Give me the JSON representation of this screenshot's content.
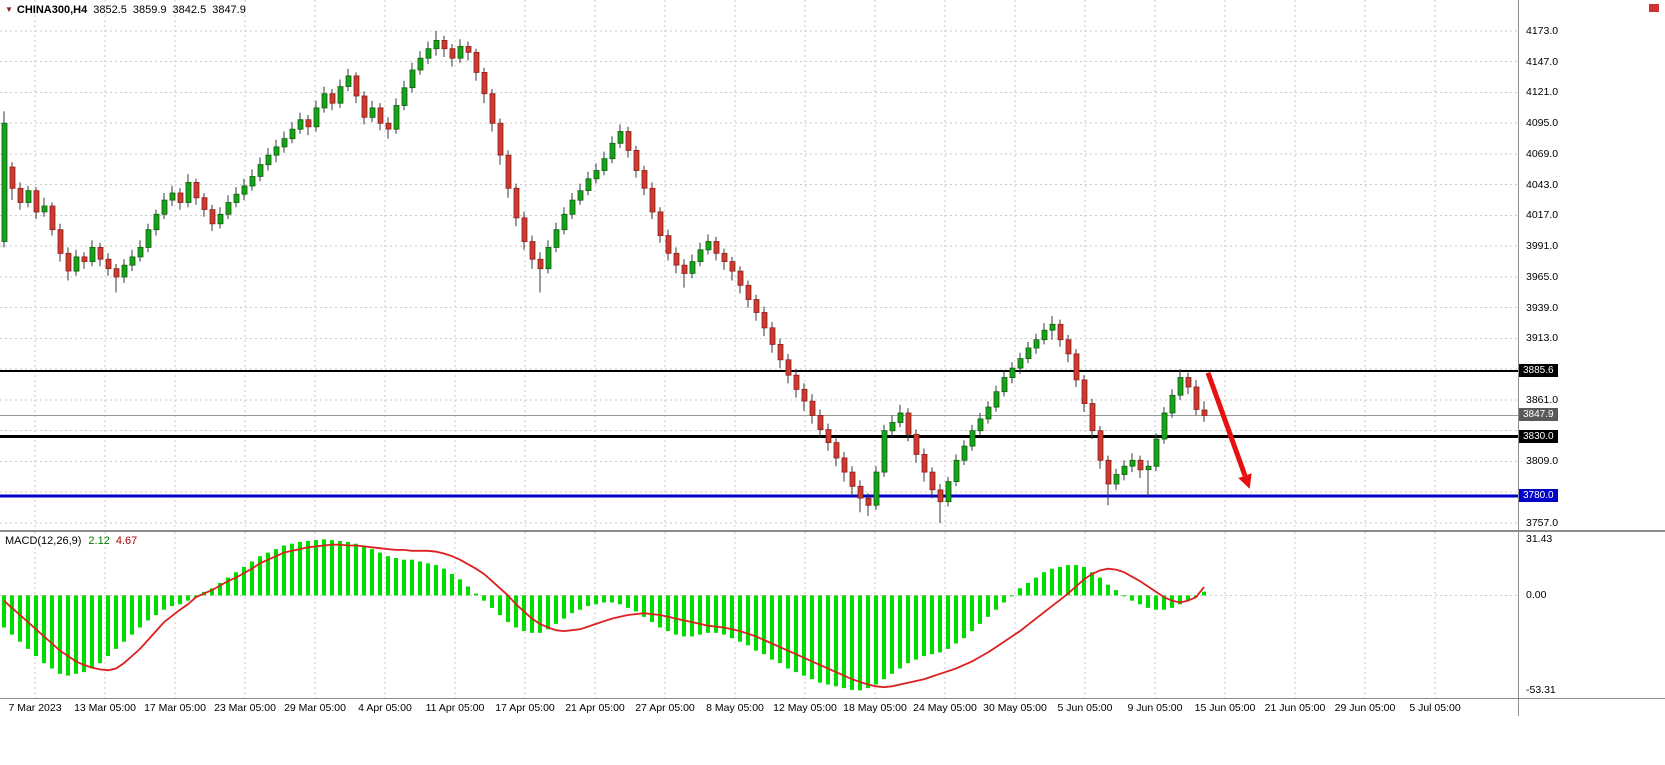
{
  "header": {
    "symbol": "CHINA300,H4",
    "open": "3852.5",
    "high": "3859.9",
    "low": "3842.5",
    "close": "3847.9"
  },
  "icons": {
    "symbol_dropdown": "▼"
  },
  "macd": {
    "label": "MACD(12,26,9)",
    "value_main": "2.12",
    "value_signal": "4.67"
  },
  "price_axis": {
    "badges": [
      {
        "label": "3885.6",
        "value": 3885.6,
        "bg": "#000000"
      },
      {
        "label": "3847.9",
        "value": 3847.9,
        "bg": "#5a5a5a"
      },
      {
        "label": "3830.0",
        "value": 3830.0,
        "bg": "#000000"
      },
      {
        "label": "3780.0",
        "value": 3780.0,
        "bg": "#0000c8"
      }
    ]
  },
  "colors": {
    "up": "#17a317",
    "up_border": "#0b5d0b",
    "down": "#cc3b30",
    "down_border": "#8d1f17",
    "wick": "#3a3a3a",
    "hist": "#00db00",
    "signal": "#dd1f1f",
    "grid": "#c9c9c9",
    "arrow": "#e81010",
    "axis_text": "#000000"
  },
  "chart_data": [
    {
      "type": "candlestick",
      "title": "CHINA300,H4",
      "timeframe": "H4",
      "ylim": [
        3751,
        4199
      ],
      "grid": true,
      "y_ticks": [
        4173,
        4147,
        4121,
        4095,
        4069,
        4043,
        4017,
        3991,
        3965,
        3939,
        3913,
        3887,
        3861,
        3835,
        3809,
        3783,
        3757
      ],
      "hidden_ticks": [
        3887,
        3835,
        3783
      ],
      "x_labels": [
        "7 Mar 2023",
        "13 Mar 05:00",
        "17 Mar 05:00",
        "23 Mar 05:00",
        "29 Mar 05:00",
        "4 Apr 05:00",
        "11 Apr 05:00",
        "17 Apr 05:00",
        "21 Apr 05:00",
        "27 Apr 05:00",
        "8 May 05:00",
        "12 May 05:00",
        "18 May 05:00",
        "24 May 05:00",
        "30 May 05:00",
        "5 Jun 05:00",
        "9 Jun 05:00",
        "15 Jun 05:00",
        "21 Jun 05:00",
        "29 Jun 05:00",
        "5 Jul 05:00"
      ],
      "hlines": [
        {
          "value": 3885.6,
          "color": "#000000",
          "width": 2,
          "role": "resistance"
        },
        {
          "value": 3830.0,
          "color": "#000000",
          "width": 3,
          "role": "support"
        },
        {
          "value": 3780.0,
          "color": "#0000c8",
          "width": 3,
          "role": "support"
        },
        {
          "value": 3847.9,
          "color": "#999999",
          "width": 1,
          "role": "current-price"
        }
      ],
      "annotations": [
        {
          "shape": "arrow",
          "color": "#e81010",
          "x_from": 1208,
          "price_from": 3884,
          "x_to": 1245,
          "price_to": 3797,
          "meaning": "projected decline"
        }
      ],
      "ohlc_current": {
        "open": 3852.5,
        "high": 3859.9,
        "low": 3842.5,
        "close": 3847.9
      },
      "candles": [
        [
          3995,
          4105,
          3990,
          4095
        ],
        [
          4058,
          4062,
          4030,
          4040
        ],
        [
          4040,
          4045,
          4022,
          4028
        ],
        [
          4028,
          4042,
          4024,
          4038
        ],
        [
          4038,
          4041,
          4014,
          4020
        ],
        [
          4020,
          4032,
          4016,
          4025
        ],
        [
          4025,
          4028,
          4000,
          4005
        ],
        [
          4005,
          4010,
          3978,
          3985
        ],
        [
          3985,
          3990,
          3962,
          3970
        ],
        [
          3970,
          3988,
          3966,
          3982
        ],
        [
          3982,
          3986,
          3972,
          3978
        ],
        [
          3978,
          3996,
          3974,
          3990
        ],
        [
          3990,
          3994,
          3974,
          3980
        ],
        [
          3980,
          3985,
          3966,
          3972
        ],
        [
          3972,
          3976,
          3952,
          3965
        ],
        [
          3965,
          3980,
          3960,
          3975
        ],
        [
          3975,
          3988,
          3970,
          3982
        ],
        [
          3982,
          3996,
          3978,
          3990
        ],
        [
          3990,
          4010,
          3986,
          4005
        ],
        [
          4005,
          4022,
          4000,
          4018
        ],
        [
          4018,
          4036,
          4014,
          4030
        ],
        [
          4030,
          4042,
          4025,
          4036
        ],
        [
          4036,
          4040,
          4022,
          4028
        ],
        [
          4028,
          4052,
          4024,
          4045
        ],
        [
          4045,
          4048,
          4026,
          4032
        ],
        [
          4032,
          4036,
          4016,
          4022
        ],
        [
          4022,
          4026,
          4004,
          4010
        ],
        [
          4010,
          4024,
          4006,
          4018
        ],
        [
          4018,
          4034,
          4014,
          4028
        ],
        [
          4028,
          4041,
          4024,
          4035
        ],
        [
          4035,
          4048,
          4030,
          4042
        ],
        [
          4042,
          4056,
          4038,
          4050
        ],
        [
          4050,
          4066,
          4046,
          4060
        ],
        [
          4060,
          4074,
          4055,
          4068
        ],
        [
          4068,
          4081,
          4062,
          4075
        ],
        [
          4075,
          4088,
          4070,
          4082
        ],
        [
          4082,
          4096,
          4078,
          4090
        ],
        [
          4090,
          4104,
          4086,
          4098
        ],
        [
          4098,
          4102,
          4085,
          4092
        ],
        [
          4092,
          4114,
          4088,
          4108
        ],
        [
          4108,
          4126,
          4104,
          4120
        ],
        [
          4120,
          4124,
          4106,
          4112
        ],
        [
          4112,
          4132,
          4108,
          4126
        ],
        [
          4126,
          4141,
          4122,
          4135
        ],
        [
          4135,
          4138,
          4112,
          4118
        ],
        [
          4118,
          4122,
          4094,
          4100
        ],
        [
          4100,
          4114,
          4096,
          4108
        ],
        [
          4108,
          4112,
          4089,
          4095
        ],
        [
          4095,
          4100,
          4082,
          4090
        ],
        [
          4090,
          4116,
          4086,
          4110
        ],
        [
          4110,
          4131,
          4106,
          4125
        ],
        [
          4125,
          4146,
          4121,
          4140
        ],
        [
          4140,
          4156,
          4136,
          4150
        ],
        [
          4150,
          4164,
          4145,
          4158
        ],
        [
          4158,
          4173,
          4152,
          4165
        ],
        [
          4165,
          4169,
          4151,
          4158
        ],
        [
          4158,
          4162,
          4143,
          4150
        ],
        [
          4150,
          4166,
          4146,
          4160
        ],
        [
          4160,
          4164,
          4148,
          4155
        ],
        [
          4155,
          4158,
          4131,
          4138
        ],
        [
          4138,
          4142,
          4112,
          4120
        ],
        [
          4120,
          4124,
          4088,
          4095
        ],
        [
          4095,
          4099,
          4060,
          4068
        ],
        [
          4068,
          4072,
          4032,
          4040
        ],
        [
          4040,
          4044,
          4008,
          4015
        ],
        [
          4015,
          4020,
          3988,
          3995
        ],
        [
          3995,
          4000,
          3972,
          3980
        ],
        [
          3980,
          3986,
          3952,
          3972
        ],
        [
          3972,
          3996,
          3968,
          3990
        ],
        [
          3990,
          4011,
          3986,
          4005
        ],
        [
          4005,
          4024,
          4001,
          4018
        ],
        [
          4018,
          4036,
          4014,
          4030
        ],
        [
          4030,
          4044,
          4026,
          4038
        ],
        [
          4038,
          4054,
          4034,
          4048
        ],
        [
          4048,
          4061,
          4044,
          4055
        ],
        [
          4055,
          4071,
          4051,
          4065
        ],
        [
          4065,
          4084,
          4061,
          4078
        ],
        [
          4078,
          4094,
          4074,
          4088
        ],
        [
          4088,
          4092,
          4066,
          4072
        ],
        [
          4072,
          4076,
          4049,
          4055
        ],
        [
          4055,
          4059,
          4034,
          4040
        ],
        [
          4040,
          4045,
          4014,
          4020
        ],
        [
          4020,
          4024,
          3994,
          4000
        ],
        [
          4000,
          4005,
          3979,
          3985
        ],
        [
          3985,
          3990,
          3968,
          3975
        ],
        [
          3975,
          3980,
          3956,
          3968
        ],
        [
          3968,
          3984,
          3964,
          3978
        ],
        [
          3978,
          3994,
          3974,
          3988
        ],
        [
          3988,
          4001,
          3984,
          3995
        ],
        [
          3995,
          3999,
          3979,
          3985
        ],
        [
          3985,
          3989,
          3971,
          3978
        ],
        [
          3978,
          3982,
          3962,
          3970
        ],
        [
          3970,
          3974,
          3951,
          3958
        ],
        [
          3958,
          3962,
          3939,
          3946
        ],
        [
          3946,
          3950,
          3928,
          3935
        ],
        [
          3935,
          3940,
          3915,
          3922
        ],
        [
          3922,
          3927,
          3901,
          3908
        ],
        [
          3908,
          3913,
          3888,
          3895
        ],
        [
          3895,
          3900,
          3875,
          3882
        ],
        [
          3882,
          3887,
          3863,
          3870
        ],
        [
          3870,
          3875,
          3852,
          3860
        ],
        [
          3860,
          3866,
          3841,
          3848
        ],
        [
          3848,
          3853,
          3829,
          3836
        ],
        [
          3836,
          3841,
          3818,
          3825
        ],
        [
          3825,
          3830,
          3805,
          3812
        ],
        [
          3812,
          3817,
          3792,
          3800
        ],
        [
          3800,
          3805,
          3780,
          3788
        ],
        [
          3788,
          3793,
          3766,
          3778
        ],
        [
          3778,
          3782,
          3763,
          3772
        ],
        [
          3772,
          3805,
          3768,
          3800
        ],
        [
          3800,
          3840,
          3796,
          3835
        ],
        [
          3835,
          3848,
          3830,
          3842
        ],
        [
          3842,
          3857,
          3838,
          3850
        ],
        [
          3850,
          3854,
          3826,
          3832
        ],
        [
          3832,
          3836,
          3808,
          3815
        ],
        [
          3815,
          3820,
          3792,
          3800
        ],
        [
          3800,
          3804,
          3778,
          3785
        ],
        [
          3785,
          3790,
          3757,
          3775
        ],
        [
          3775,
          3796,
          3771,
          3792
        ],
        [
          3792,
          3815,
          3788,
          3810
        ],
        [
          3810,
          3827,
          3806,
          3822
        ],
        [
          3822,
          3840,
          3818,
          3835
        ],
        [
          3835,
          3850,
          3831,
          3845
        ],
        [
          3845,
          3860,
          3841,
          3855
        ],
        [
          3855,
          3873,
          3851,
          3868
        ],
        [
          3868,
          3885,
          3864,
          3880
        ],
        [
          3880,
          3893,
          3875,
          3888
        ],
        [
          3888,
          3901,
          3883,
          3896
        ],
        [
          3896,
          3910,
          3892,
          3905
        ],
        [
          3905,
          3917,
          3900,
          3912
        ],
        [
          3912,
          3926,
          3908,
          3920
        ],
        [
          3920,
          3932,
          3912,
          3925
        ],
        [
          3925,
          3929,
          3906,
          3912
        ],
        [
          3912,
          3916,
          3893,
          3900
        ],
        [
          3900,
          3904,
          3872,
          3878
        ],
        [
          3878,
          3882,
          3851,
          3858
        ],
        [
          3858,
          3862,
          3828,
          3835
        ],
        [
          3835,
          3839,
          3803,
          3810
        ],
        [
          3810,
          3814,
          3772,
          3790
        ],
        [
          3790,
          3803,
          3785,
          3798
        ],
        [
          3798,
          3810,
          3793,
          3805
        ],
        [
          3805,
          3816,
          3800,
          3810
        ],
        [
          3810,
          3814,
          3795,
          3802
        ],
        [
          3802,
          3810,
          3780,
          3805
        ],
        [
          3805,
          3833,
          3801,
          3828
        ],
        [
          3828,
          3855,
          3824,
          3850
        ],
        [
          3850,
          3870,
          3846,
          3865
        ],
        [
          3865,
          3887,
          3861,
          3880
        ],
        [
          3880,
          3884,
          3866,
          3872
        ],
        [
          3872,
          3878,
          3848,
          3853
        ],
        [
          3852.5,
          3859.9,
          3842.5,
          3847.9
        ]
      ]
    },
    {
      "type": "bar",
      "name": "MACD(12,26,9)",
      "current_values": {
        "macd": 2.12,
        "signal": 4.67
      },
      "y_labels": [
        {
          "label": "31.43",
          "value": 31.43
        },
        {
          "label": "0.00",
          "value": 0
        },
        {
          "label": "-53.31",
          "value": -53.31
        }
      ],
      "histogram": [
        -18,
        -22,
        -26,
        -30,
        -34,
        -38,
        -41,
        -44,
        -45,
        -44,
        -43,
        -41,
        -38,
        -34,
        -30,
        -26,
        -22,
        -18,
        -14,
        -11,
        -8,
        -6,
        -5,
        -3,
        -1,
        2,
        4,
        7,
        10,
        13,
        16,
        19,
        22,
        24,
        26,
        28,
        29,
        30,
        30.5,
        31,
        31.4,
        31,
        30.5,
        30,
        29,
        28,
        26,
        24,
        22,
        21,
        20,
        20,
        19,
        18,
        17,
        15,
        12,
        9,
        5,
        1,
        -3,
        -7,
        -11,
        -15,
        -18,
        -20,
        -21,
        -21,
        -19,
        -16,
        -13,
        -10,
        -8,
        -6,
        -5,
        -4,
        -4,
        -5,
        -7,
        -9,
        -12,
        -15,
        -18,
        -20,
        -22,
        -23,
        -23,
        -22,
        -21,
        -21,
        -22,
        -24,
        -26,
        -28,
        -31,
        -33,
        -36,
        -38,
        -41,
        -43,
        -45,
        -47,
        -49,
        -50,
        -51,
        -52,
        -53,
        -53.3,
        -52,
        -50,
        -47,
        -44,
        -41,
        -38,
        -36,
        -34,
        -33,
        -32,
        -30,
        -27,
        -24,
        -20,
        -16,
        -12,
        -8,
        -4,
        0,
        4,
        7,
        10,
        13,
        15,
        16,
        17,
        17,
        16,
        13,
        10,
        6,
        3,
        0,
        -3,
        -5,
        -7,
        -8,
        -8,
        -7,
        -5,
        -3,
        -1,
        2.12
      ],
      "signal_line": [
        -3,
        -7,
        -11,
        -15,
        -19,
        -23,
        -27,
        -31,
        -34,
        -37,
        -39,
        -40.5,
        -41.5,
        -42,
        -41,
        -38,
        -34,
        -30,
        -25,
        -20,
        -15,
        -11.5,
        -8,
        -5,
        -1,
        1,
        3,
        5.5,
        8,
        10,
        12.5,
        15,
        18,
        20,
        22,
        24,
        25,
        26,
        27,
        27.5,
        28,
        28.5,
        28.5,
        28,
        28,
        27.5,
        27,
        26.5,
        26,
        25.5,
        25.5,
        25,
        25,
        25,
        24.5,
        23.5,
        22,
        20,
        17.5,
        15,
        12,
        8,
        4,
        0,
        -5,
        -9,
        -13,
        -16,
        -18,
        -19.5,
        -20,
        -19.5,
        -19,
        -17.5,
        -16,
        -14.5,
        -13,
        -12,
        -11,
        -10.5,
        -10,
        -10.5,
        -11,
        -12,
        -13,
        -14,
        -15,
        -16,
        -17,
        -17.5,
        -18,
        -19,
        -20,
        -21.5,
        -23,
        -25,
        -27,
        -29,
        -31,
        -33,
        -35,
        -37,
        -39,
        -41,
        -43,
        -45,
        -47,
        -48.5,
        -50,
        -51,
        -51.5,
        -51,
        -50,
        -49,
        -48,
        -47,
        -45.5,
        -44,
        -42.5,
        -41,
        -39,
        -37,
        -34.5,
        -32,
        -29,
        -26,
        -23,
        -20,
        -16.5,
        -13,
        -9.5,
        -6,
        -2.5,
        1,
        5,
        9,
        12,
        14,
        15,
        14.5,
        13,
        10.5,
        8,
        5,
        2,
        -1,
        -3,
        -4,
        -3,
        -1,
        4.67
      ]
    }
  ]
}
